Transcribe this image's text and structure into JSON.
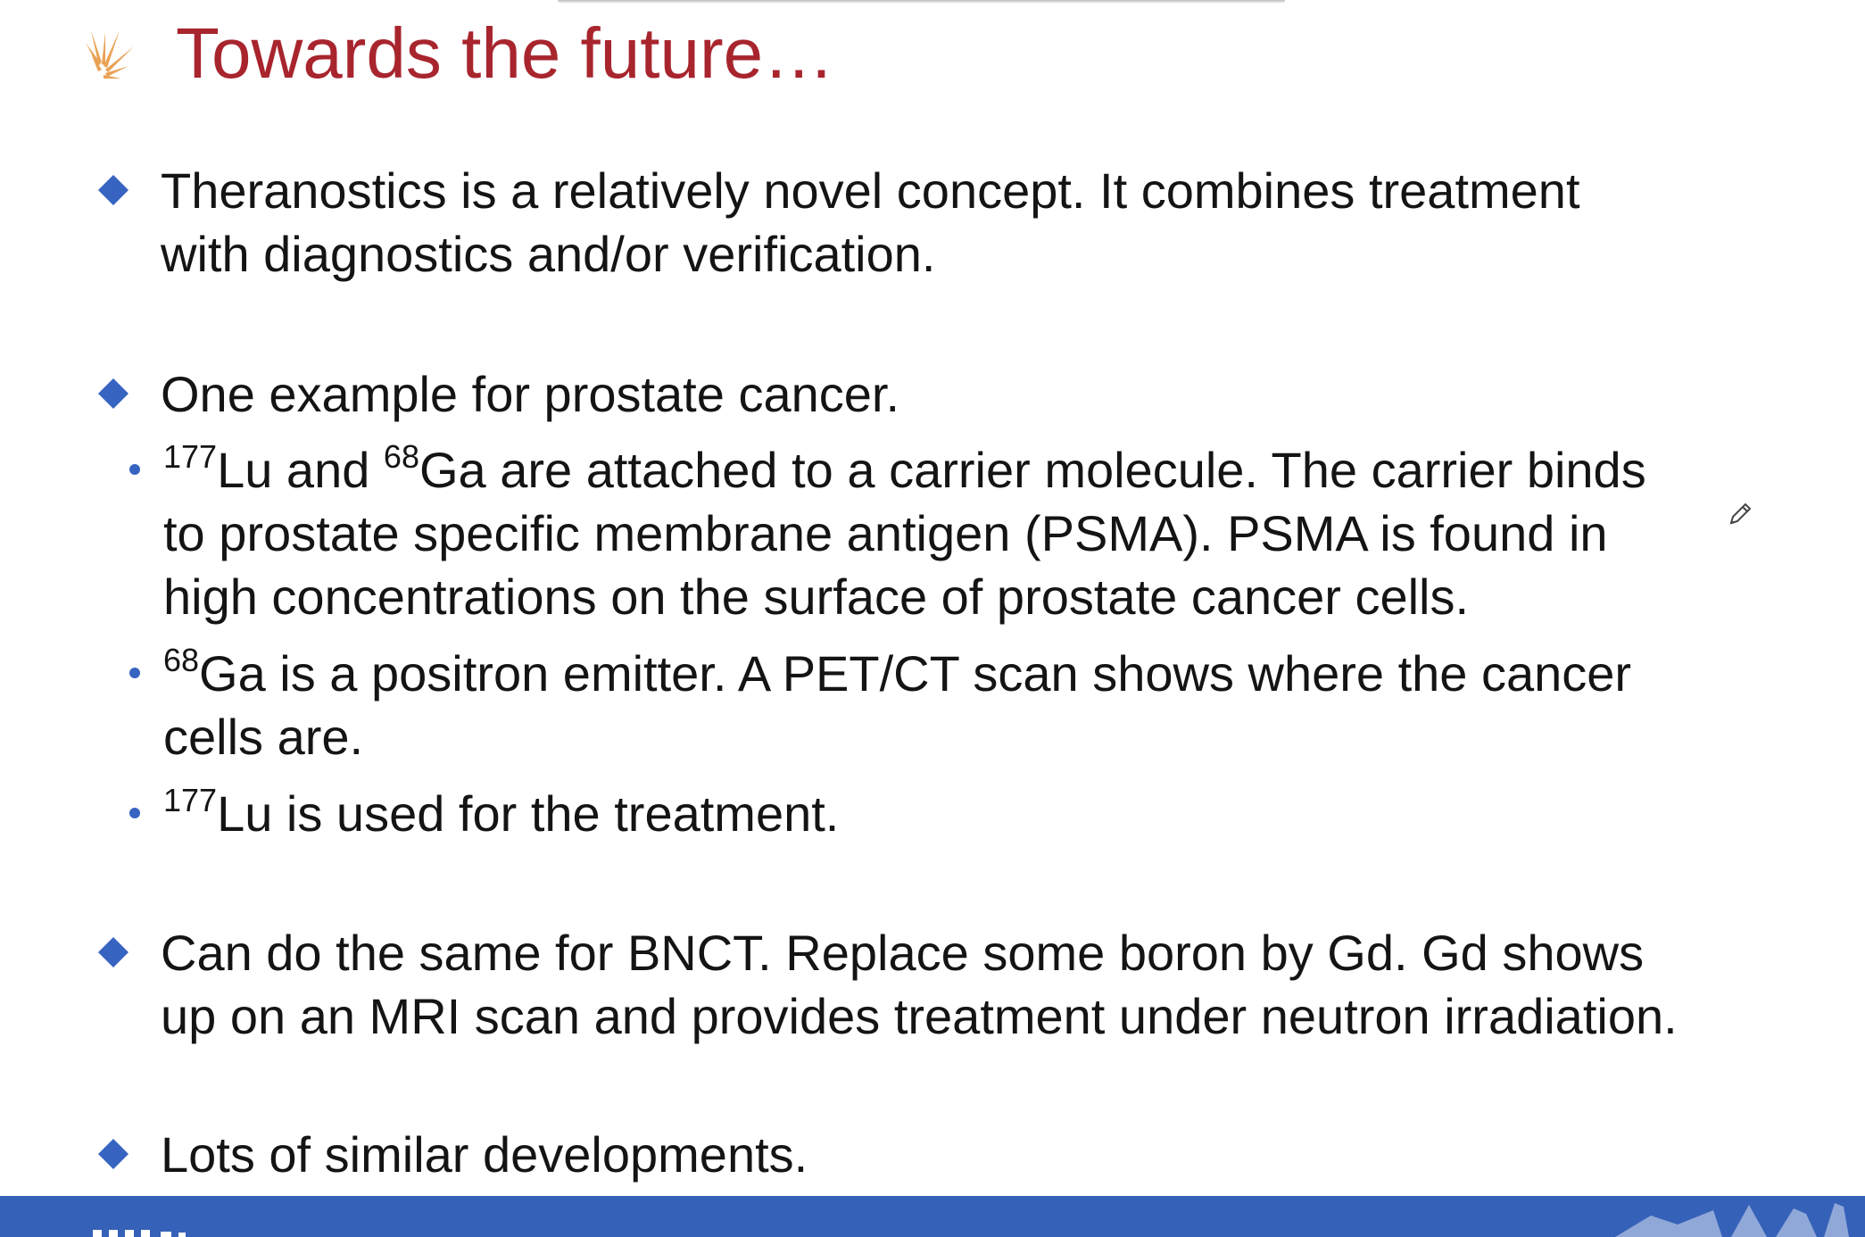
{
  "slide": {
    "title": "Towards the future…",
    "colors": {
      "title": "#a8252e",
      "bullet": "#3763c1",
      "footer": "#3561b8",
      "logo": "#e9a255"
    },
    "bullets": [
      {
        "lines": [
          "Theranostics is a relatively novel concept. It combines treatment",
          "with diagnostics and/or verification."
        ]
      },
      {
        "lines": [
          "One example for prostate cancer."
        ],
        "subs": [
          {
            "iso1": "177",
            "t1": "Lu and ",
            "iso2": "68",
            "t2": "Ga are attached to a carrier molecule. The carrier binds",
            "line2": "to prostate specific membrane antigen (PSMA). PSMA is found in",
            "line3": "high concentrations on the surface of prostate cancer cells."
          },
          {
            "iso": "68",
            "t": "Ga is a positron emitter. A PET/CT scan shows where the cancer",
            "line2": "cells are."
          },
          {
            "iso": "177",
            "t": "Lu is used for the treatment."
          }
        ]
      },
      {
        "lines": [
          "Can do the same for BNCT. Replace some boron by Gd. Gd shows",
          "up on an MRI scan and provides treatment under neutron irradiation."
        ]
      },
      {
        "lines": [
          "Lots of similar developments."
        ]
      }
    ]
  },
  "icons": {
    "logo": "sunburst-logo-icon",
    "bullet": "diamond-bullet-icon",
    "cursor": "pen-cursor-icon"
  }
}
